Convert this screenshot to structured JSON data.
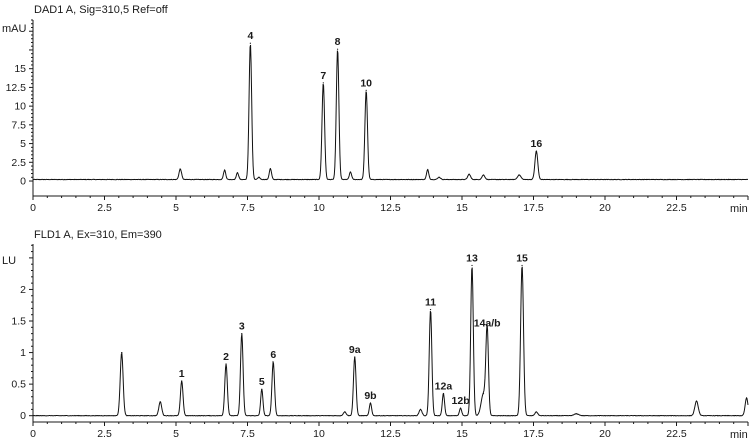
{
  "chart_data": [
    {
      "type": "line",
      "title": "DAD1 A, Sig=310,5 Ref=off",
      "xlabel": "min",
      "ylabel": "mAU",
      "xlim": [
        0,
        25
      ],
      "ylim": [
        -2,
        21.5
      ],
      "x_ticks": [
        0,
        2.5,
        5,
        7.5,
        10,
        12.5,
        15,
        17.5,
        20,
        22.5
      ],
      "x_tick_labels": [
        "0",
        "2.5",
        "5",
        "7.5",
        "10",
        "12.5",
        "15",
        "17.5",
        "20",
        "22.5"
      ],
      "y_ticks": [
        0,
        2.5,
        5,
        7.5,
        10,
        12.5,
        15
      ],
      "y_tick_labels": [
        "0",
        "2.5",
        "5",
        "7.5",
        "10",
        "12.5",
        "15"
      ],
      "baseline": 0.2,
      "peaks": [
        {
          "x": 5.15,
          "y": 1.4,
          "w": 0.045
        },
        {
          "x": 6.7,
          "y": 1.25,
          "w": 0.04
        },
        {
          "x": 7.15,
          "y": 0.9,
          "w": 0.04
        },
        {
          "x": 7.6,
          "y": 18.2,
          "w": 0.045,
          "label": "4"
        },
        {
          "x": 7.9,
          "y": 0.3,
          "w": 0.04
        },
        {
          "x": 8.3,
          "y": 1.45,
          "w": 0.04
        },
        {
          "x": 10.15,
          "y": 12.9,
          "w": 0.045,
          "label": "7"
        },
        {
          "x": 10.65,
          "y": 17.4,
          "w": 0.045,
          "label": "8"
        },
        {
          "x": 11.1,
          "y": 1.0,
          "w": 0.04
        },
        {
          "x": 11.65,
          "y": 11.9,
          "w": 0.045,
          "label": "10"
        },
        {
          "x": 13.8,
          "y": 1.3,
          "w": 0.04
        },
        {
          "x": 14.2,
          "y": 0.3,
          "w": 0.05
        },
        {
          "x": 15.25,
          "y": 0.7,
          "w": 0.05
        },
        {
          "x": 15.75,
          "y": 0.6,
          "w": 0.05
        },
        {
          "x": 17.0,
          "y": 0.6,
          "w": 0.06
        },
        {
          "x": 17.6,
          "y": 3.8,
          "w": 0.05,
          "label": "16"
        }
      ]
    },
    {
      "type": "line",
      "title": "FLD1 A, Ex=310, Em=390",
      "xlabel": "min",
      "ylabel": "LU",
      "xlim": [
        0,
        25
      ],
      "ylim": [
        -0.1,
        2.72
      ],
      "x_ticks": [
        0,
        2.5,
        5,
        7.5,
        10,
        12.5,
        15,
        17.5,
        20,
        22.5
      ],
      "x_tick_labels": [
        "0",
        "2.5",
        "5",
        "7.5",
        "10",
        "12.5",
        "15",
        "17.5",
        "20",
        "22.5"
      ],
      "y_ticks": [
        0,
        0.5,
        1,
        1.5,
        2
      ],
      "y_tick_labels": [
        "0",
        "0.5",
        "1",
        "1.5",
        "2"
      ],
      "baseline": 0.0,
      "peaks": [
        {
          "x": 3.1,
          "y": 1.0,
          "w": 0.05
        },
        {
          "x": 4.45,
          "y": 0.22,
          "w": 0.05
        },
        {
          "x": 5.2,
          "y": 0.55,
          "w": 0.045,
          "label": "1"
        },
        {
          "x": 6.75,
          "y": 0.82,
          "w": 0.045,
          "label": "2"
        },
        {
          "x": 7.3,
          "y": 1.3,
          "w": 0.045,
          "label": "3"
        },
        {
          "x": 8.0,
          "y": 0.42,
          "w": 0.04,
          "label": "5"
        },
        {
          "x": 8.4,
          "y": 0.85,
          "w": 0.045,
          "label": "6"
        },
        {
          "x": 10.9,
          "y": 0.06,
          "w": 0.05
        },
        {
          "x": 11.25,
          "y": 0.93,
          "w": 0.045,
          "label": "9a"
        },
        {
          "x": 11.8,
          "y": 0.2,
          "w": 0.04,
          "label": "9b"
        },
        {
          "x": 13.55,
          "y": 0.1,
          "w": 0.05
        },
        {
          "x": 13.9,
          "y": 1.68,
          "w": 0.045,
          "label": "11"
        },
        {
          "x": 14.35,
          "y": 0.35,
          "w": 0.04,
          "label": "12a"
        },
        {
          "x": 14.95,
          "y": 0.12,
          "w": 0.04,
          "label": "12b"
        },
        {
          "x": 15.35,
          "y": 2.38,
          "w": 0.045,
          "label": "13"
        },
        {
          "x": 15.75,
          "y": 0.35,
          "w": 0.08
        },
        {
          "x": 15.88,
          "y": 1.35,
          "w": 0.045,
          "label": "14a/b"
        },
        {
          "x": 17.1,
          "y": 2.38,
          "w": 0.05,
          "label": "15"
        },
        {
          "x": 17.6,
          "y": 0.06,
          "w": 0.05
        },
        {
          "x": 19.0,
          "y": 0.03,
          "w": 0.08
        },
        {
          "x": 23.2,
          "y": 0.23,
          "w": 0.06
        },
        {
          "x": 24.95,
          "y": 0.28,
          "w": 0.05
        }
      ]
    }
  ]
}
